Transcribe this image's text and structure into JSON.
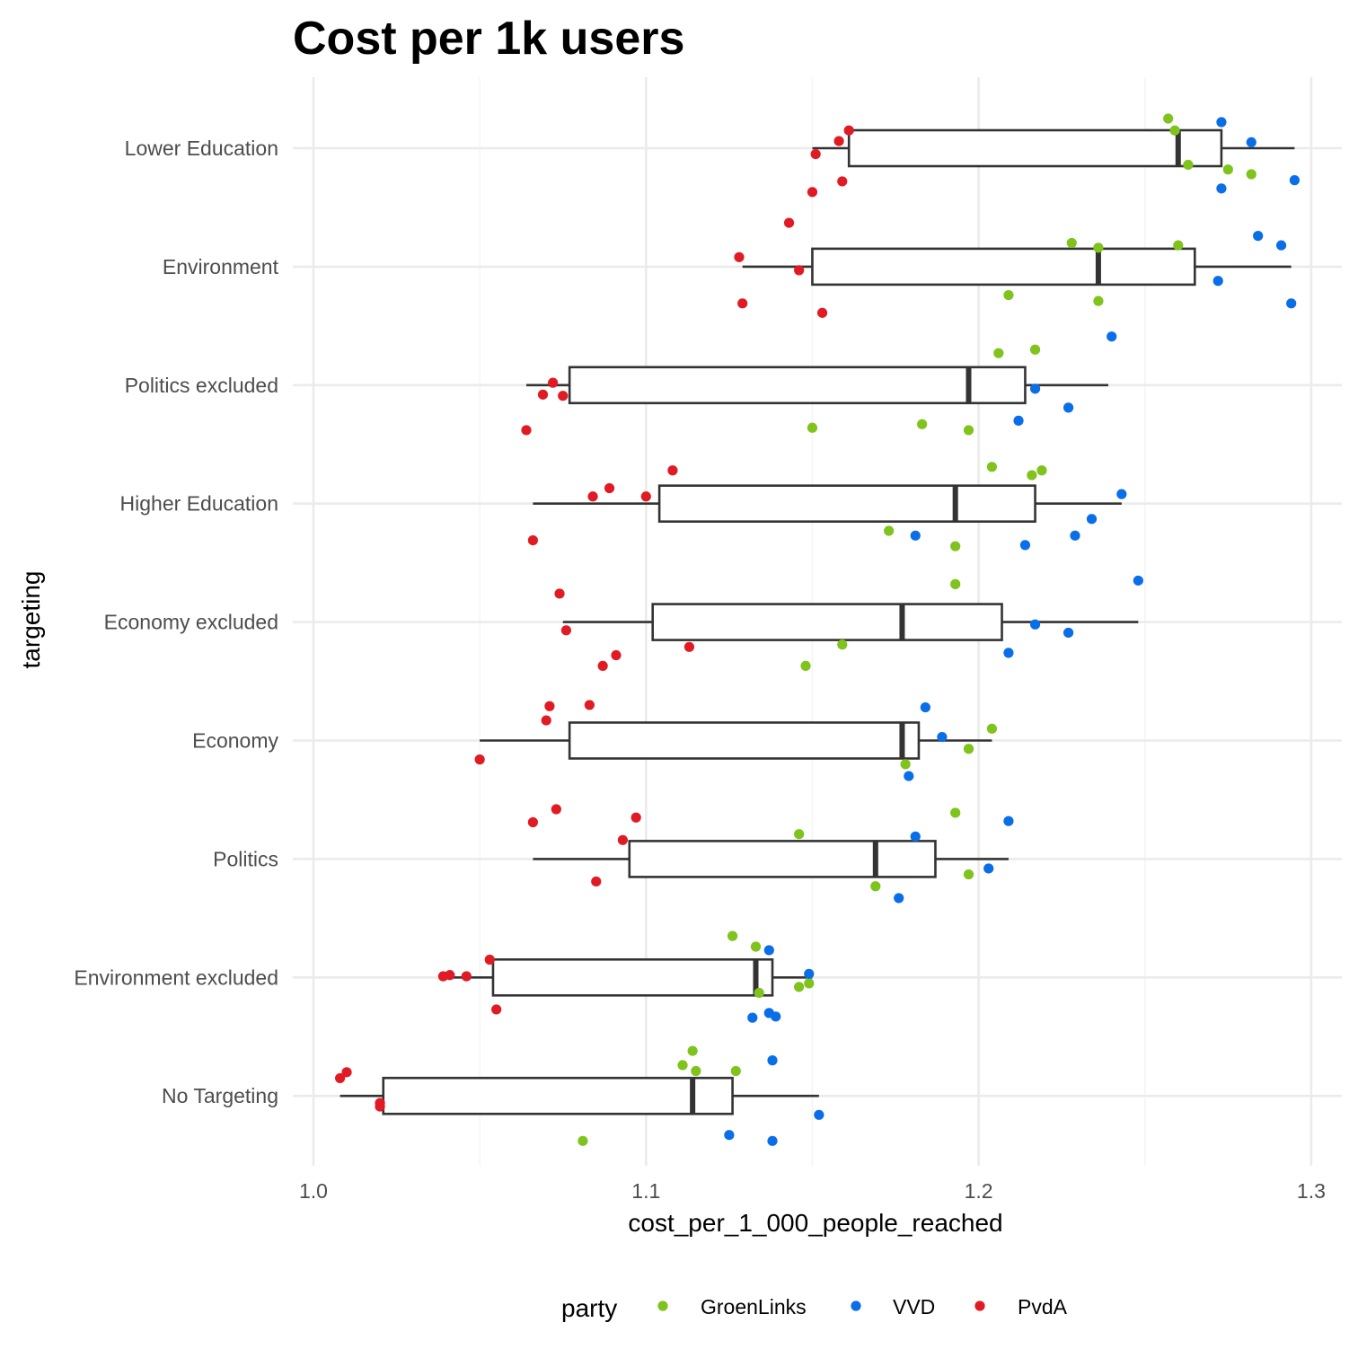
{
  "chart_data": {
    "type": "box",
    "title": "Cost per 1k users",
    "xlabel": "cost_per_1_000_people_reached",
    "ylabel": "targeting",
    "xlim": [
      0.995,
      1.31
    ],
    "x_ticks": [
      1.0,
      1.1,
      1.2,
      1.3
    ],
    "x_tick_labels": [
      "1.0",
      "1.1",
      "1.2",
      "1.3"
    ],
    "grid": true,
    "legend_position": "bottom",
    "legend": {
      "title": "party",
      "entries": [
        {
          "name": "GroenLinks",
          "color": "#7fc31c"
        },
        {
          "name": "VVD",
          "color": "#0a6ee8"
        },
        {
          "name": "PvdA",
          "color": "#e01b24"
        }
      ]
    },
    "categories": [
      "Lower Education",
      "Environment",
      "Politics excluded",
      "Higher Education",
      "Economy excluded",
      "Economy",
      "Politics",
      "Environment excluded",
      "No Targeting"
    ],
    "boxes": [
      {
        "category": "Lower Education",
        "whisker_low": 1.15,
        "q1": 1.161,
        "median": 1.26,
        "q3": 1.273,
        "whisker_high": 1.295
      },
      {
        "category": "Environment",
        "whisker_low": 1.129,
        "q1": 1.15,
        "median": 1.236,
        "q3": 1.265,
        "whisker_high": 1.294
      },
      {
        "category": "Politics excluded",
        "whisker_low": 1.064,
        "q1": 1.077,
        "median": 1.197,
        "q3": 1.214,
        "whisker_high": 1.239
      },
      {
        "category": "Higher Education",
        "whisker_low": 1.066,
        "q1": 1.104,
        "median": 1.193,
        "q3": 1.217,
        "whisker_high": 1.243
      },
      {
        "category": "Economy excluded",
        "whisker_low": 1.075,
        "q1": 1.102,
        "median": 1.177,
        "q3": 1.207,
        "whisker_high": 1.248
      },
      {
        "category": "Economy",
        "whisker_low": 1.05,
        "q1": 1.077,
        "median": 1.177,
        "q3": 1.182,
        "whisker_high": 1.204
      },
      {
        "category": "Politics",
        "whisker_low": 1.066,
        "q1": 1.095,
        "median": 1.169,
        "q3": 1.187,
        "whisker_high": 1.209
      },
      {
        "category": "Environment excluded",
        "whisker_low": 1.04,
        "q1": 1.054,
        "median": 1.133,
        "q3": 1.138,
        "whisker_high": 1.15
      },
      {
        "category": "No Targeting",
        "whisker_low": 1.008,
        "q1": 1.021,
        "median": 1.114,
        "q3": 1.126,
        "whisker_high": 1.152
      }
    ],
    "points": [
      {
        "category": "Lower Education",
        "party": "GroenLinks",
        "x": 1.257,
        "jitter": 0.25
      },
      {
        "category": "Lower Education",
        "party": "GroenLinks",
        "x": 1.259,
        "jitter": 0.15
      },
      {
        "category": "Lower Education",
        "party": "GroenLinks",
        "x": 1.263,
        "jitter": -0.14
      },
      {
        "category": "Lower Education",
        "party": "GroenLinks",
        "x": 1.275,
        "jitter": -0.18
      },
      {
        "category": "Lower Education",
        "party": "GroenLinks",
        "x": 1.282,
        "jitter": -0.22
      },
      {
        "category": "Lower Education",
        "party": "VVD",
        "x": 1.273,
        "jitter": 0.22
      },
      {
        "category": "Lower Education",
        "party": "VVD",
        "x": 1.282,
        "jitter": 0.05
      },
      {
        "category": "Lower Education",
        "party": "VVD",
        "x": 1.273,
        "jitter": -0.34
      },
      {
        "category": "Lower Education",
        "party": "VVD",
        "x": 1.295,
        "jitter": -0.27
      },
      {
        "category": "Lower Education",
        "party": "PvdA",
        "x": 1.161,
        "jitter": 0.15
      },
      {
        "category": "Lower Education",
        "party": "PvdA",
        "x": 1.158,
        "jitter": 0.06
      },
      {
        "category": "Lower Education",
        "party": "PvdA",
        "x": 1.151,
        "jitter": -0.05
      },
      {
        "category": "Lower Education",
        "party": "PvdA",
        "x": 1.159,
        "jitter": -0.28
      },
      {
        "category": "Lower Education",
        "party": "PvdA",
        "x": 1.15,
        "jitter": -0.37
      },
      {
        "category": "Lower Education",
        "party": "PvdA",
        "x": 1.143,
        "jitter": -0.63
      },
      {
        "category": "Environment",
        "party": "GroenLinks",
        "x": 1.228,
        "jitter": 0.2
      },
      {
        "category": "Environment",
        "party": "GroenLinks",
        "x": 1.236,
        "jitter": 0.16
      },
      {
        "category": "Environment",
        "party": "GroenLinks",
        "x": 1.26,
        "jitter": 0.18
      },
      {
        "category": "Environment",
        "party": "GroenLinks",
        "x": 1.209,
        "jitter": -0.24
      },
      {
        "category": "Environment",
        "party": "GroenLinks",
        "x": 1.236,
        "jitter": -0.29
      },
      {
        "category": "Environment",
        "party": "VVD",
        "x": 1.284,
        "jitter": 0.26
      },
      {
        "category": "Environment",
        "party": "VVD",
        "x": 1.291,
        "jitter": 0.18
      },
      {
        "category": "Environment",
        "party": "VVD",
        "x": 1.272,
        "jitter": -0.12
      },
      {
        "category": "Environment",
        "party": "VVD",
        "x": 1.294,
        "jitter": -0.31
      },
      {
        "category": "Environment",
        "party": "VVD",
        "x": 1.24,
        "jitter": -0.59
      },
      {
        "category": "Environment",
        "party": "PvdA",
        "x": 1.128,
        "jitter": 0.08
      },
      {
        "category": "Environment",
        "party": "PvdA",
        "x": 1.146,
        "jitter": -0.03
      },
      {
        "category": "Environment",
        "party": "PvdA",
        "x": 1.129,
        "jitter": -0.31
      },
      {
        "category": "Environment",
        "party": "PvdA",
        "x": 1.153,
        "jitter": -0.39
      },
      {
        "category": "Politics excluded",
        "party": "GroenLinks",
        "x": 1.206,
        "jitter": 0.27
      },
      {
        "category": "Politics excluded",
        "party": "GroenLinks",
        "x": 1.217,
        "jitter": 0.3
      },
      {
        "category": "Politics excluded",
        "party": "GroenLinks",
        "x": 1.15,
        "jitter": -0.36
      },
      {
        "category": "Politics excluded",
        "party": "GroenLinks",
        "x": 1.183,
        "jitter": -0.33
      },
      {
        "category": "Politics excluded",
        "party": "GroenLinks",
        "x": 1.197,
        "jitter": -0.38
      },
      {
        "category": "Politics excluded",
        "party": "VVD",
        "x": 1.217,
        "jitter": -0.03
      },
      {
        "category": "Politics excluded",
        "party": "VVD",
        "x": 1.227,
        "jitter": -0.19
      },
      {
        "category": "Politics excluded",
        "party": "VVD",
        "x": 1.212,
        "jitter": -0.3
      },
      {
        "category": "Politics excluded",
        "party": "PvdA",
        "x": 1.072,
        "jitter": 0.02
      },
      {
        "category": "Politics excluded",
        "party": "PvdA",
        "x": 1.069,
        "jitter": -0.08
      },
      {
        "category": "Politics excluded",
        "party": "PvdA",
        "x": 1.075,
        "jitter": -0.09
      },
      {
        "category": "Politics excluded",
        "party": "PvdA",
        "x": 1.064,
        "jitter": -0.38
      },
      {
        "category": "Higher Education",
        "party": "GroenLinks",
        "x": 1.204,
        "jitter": 0.31
      },
      {
        "category": "Higher Education",
        "party": "GroenLinks",
        "x": 1.219,
        "jitter": 0.28
      },
      {
        "category": "Higher Education",
        "party": "GroenLinks",
        "x": 1.216,
        "jitter": 0.24
      },
      {
        "category": "Higher Education",
        "party": "GroenLinks",
        "x": 1.173,
        "jitter": -0.23
      },
      {
        "category": "Higher Education",
        "party": "GroenLinks",
        "x": 1.193,
        "jitter": -0.36
      },
      {
        "category": "Higher Education",
        "party": "VVD",
        "x": 1.243,
        "jitter": 0.08
      },
      {
        "category": "Higher Education",
        "party": "VVD",
        "x": 1.234,
        "jitter": -0.13
      },
      {
        "category": "Higher Education",
        "party": "VVD",
        "x": 1.181,
        "jitter": -0.27
      },
      {
        "category": "Higher Education",
        "party": "VVD",
        "x": 1.229,
        "jitter": -0.27
      },
      {
        "category": "Higher Education",
        "party": "VVD",
        "x": 1.214,
        "jitter": -0.35
      },
      {
        "category": "Higher Education",
        "party": "PvdA",
        "x": 1.108,
        "jitter": 0.28
      },
      {
        "category": "Higher Education",
        "party": "PvdA",
        "x": 1.089,
        "jitter": 0.13
      },
      {
        "category": "Higher Education",
        "party": "PvdA",
        "x": 1.084,
        "jitter": 0.06
      },
      {
        "category": "Higher Education",
        "party": "PvdA",
        "x": 1.1,
        "jitter": 0.06
      },
      {
        "category": "Higher Education",
        "party": "PvdA",
        "x": 1.066,
        "jitter": -0.31
      },
      {
        "category": "Economy excluded",
        "party": "GroenLinks",
        "x": 1.193,
        "jitter": 0.32
      },
      {
        "category": "Economy excluded",
        "party": "GroenLinks",
        "x": 1.159,
        "jitter": -0.19
      },
      {
        "category": "Economy excluded",
        "party": "GroenLinks",
        "x": 1.148,
        "jitter": -0.37
      },
      {
        "category": "Economy excluded",
        "party": "VVD",
        "x": 1.248,
        "jitter": 0.35
      },
      {
        "category": "Economy excluded",
        "party": "VVD",
        "x": 1.217,
        "jitter": -0.02
      },
      {
        "category": "Economy excluded",
        "party": "VVD",
        "x": 1.227,
        "jitter": -0.09
      },
      {
        "category": "Economy excluded",
        "party": "VVD",
        "x": 1.209,
        "jitter": -0.26
      },
      {
        "category": "Economy excluded",
        "party": "PvdA",
        "x": 1.074,
        "jitter": 0.24
      },
      {
        "category": "Economy excluded",
        "party": "PvdA",
        "x": 1.076,
        "jitter": -0.07
      },
      {
        "category": "Economy excluded",
        "party": "PvdA",
        "x": 1.113,
        "jitter": -0.21
      },
      {
        "category": "Economy excluded",
        "party": "PvdA",
        "x": 1.091,
        "jitter": -0.28
      },
      {
        "category": "Economy excluded",
        "party": "PvdA",
        "x": 1.087,
        "jitter": -0.37
      },
      {
        "category": "Economy",
        "party": "GroenLinks",
        "x": 1.204,
        "jitter": 0.1
      },
      {
        "category": "Economy",
        "party": "GroenLinks",
        "x": 1.197,
        "jitter": -0.07
      },
      {
        "category": "Economy",
        "party": "GroenLinks",
        "x": 1.178,
        "jitter": -0.2
      },
      {
        "category": "Economy",
        "party": "VVD",
        "x": 1.184,
        "jitter": 0.28
      },
      {
        "category": "Economy",
        "party": "VVD",
        "x": 1.189,
        "jitter": 0.03
      },
      {
        "category": "Economy",
        "party": "VVD",
        "x": 1.179,
        "jitter": -0.3
      },
      {
        "category": "Economy",
        "party": "PvdA",
        "x": 1.071,
        "jitter": 0.29
      },
      {
        "category": "Economy",
        "party": "PvdA",
        "x": 1.083,
        "jitter": 0.3
      },
      {
        "category": "Economy",
        "party": "PvdA",
        "x": 1.07,
        "jitter": 0.17
      },
      {
        "category": "Economy",
        "party": "PvdA",
        "x": 1.05,
        "jitter": -0.16
      },
      {
        "category": "Politics",
        "party": "GroenLinks",
        "x": 1.193,
        "jitter": 0.39
      },
      {
        "category": "Politics",
        "party": "GroenLinks",
        "x": 1.146,
        "jitter": 0.21
      },
      {
        "category": "Politics",
        "party": "GroenLinks",
        "x": 1.197,
        "jitter": -0.13
      },
      {
        "category": "Politics",
        "party": "GroenLinks",
        "x": 1.169,
        "jitter": -0.23
      },
      {
        "category": "Politics",
        "party": "VVD",
        "x": 1.209,
        "jitter": 0.32
      },
      {
        "category": "Politics",
        "party": "VVD",
        "x": 1.181,
        "jitter": 0.19
      },
      {
        "category": "Politics",
        "party": "VVD",
        "x": 1.203,
        "jitter": -0.08
      },
      {
        "category": "Politics",
        "party": "VVD",
        "x": 1.176,
        "jitter": -0.33
      },
      {
        "category": "Politics",
        "party": "PvdA",
        "x": 1.073,
        "jitter": 0.42
      },
      {
        "category": "Politics",
        "party": "PvdA",
        "x": 1.066,
        "jitter": 0.31
      },
      {
        "category": "Politics",
        "party": "PvdA",
        "x": 1.097,
        "jitter": 0.35
      },
      {
        "category": "Politics",
        "party": "PvdA",
        "x": 1.093,
        "jitter": 0.16
      },
      {
        "category": "Politics",
        "party": "PvdA",
        "x": 1.085,
        "jitter": -0.19
      },
      {
        "category": "Environment excluded",
        "party": "GroenLinks",
        "x": 1.126,
        "jitter": 0.35
      },
      {
        "category": "Environment excluded",
        "party": "GroenLinks",
        "x": 1.133,
        "jitter": 0.26
      },
      {
        "category": "Environment excluded",
        "party": "GroenLinks",
        "x": 1.134,
        "jitter": -0.13
      },
      {
        "category": "Environment excluded",
        "party": "GroenLinks",
        "x": 1.146,
        "jitter": -0.08
      },
      {
        "category": "Environment excluded",
        "party": "GroenLinks",
        "x": 1.149,
        "jitter": -0.05
      },
      {
        "category": "Environment excluded",
        "party": "VVD",
        "x": 1.137,
        "jitter": 0.23
      },
      {
        "category": "Environment excluded",
        "party": "VVD",
        "x": 1.149,
        "jitter": 0.03
      },
      {
        "category": "Environment excluded",
        "party": "VVD",
        "x": 1.132,
        "jitter": -0.34
      },
      {
        "category": "Environment excluded",
        "party": "VVD",
        "x": 1.137,
        "jitter": -0.3
      },
      {
        "category": "Environment excluded",
        "party": "VVD",
        "x": 1.139,
        "jitter": -0.33
      },
      {
        "category": "Environment excluded",
        "party": "PvdA",
        "x": 1.053,
        "jitter": 0.15
      },
      {
        "category": "Environment excluded",
        "party": "PvdA",
        "x": 1.039,
        "jitter": 0.01
      },
      {
        "category": "Environment excluded",
        "party": "PvdA",
        "x": 1.041,
        "jitter": 0.02
      },
      {
        "category": "Environment excluded",
        "party": "PvdA",
        "x": 1.046,
        "jitter": 0.01
      },
      {
        "category": "Environment excluded",
        "party": "PvdA",
        "x": 1.055,
        "jitter": -0.27
      },
      {
        "category": "No Targeting",
        "party": "GroenLinks",
        "x": 1.114,
        "jitter": 0.38
      },
      {
        "category": "No Targeting",
        "party": "GroenLinks",
        "x": 1.111,
        "jitter": 0.26
      },
      {
        "category": "No Targeting",
        "party": "GroenLinks",
        "x": 1.115,
        "jitter": 0.21
      },
      {
        "category": "No Targeting",
        "party": "GroenLinks",
        "x": 1.127,
        "jitter": 0.21
      },
      {
        "category": "No Targeting",
        "party": "GroenLinks",
        "x": 1.081,
        "jitter": -0.38
      },
      {
        "category": "No Targeting",
        "party": "VVD",
        "x": 1.138,
        "jitter": 0.3
      },
      {
        "category": "No Targeting",
        "party": "VVD",
        "x": 1.152,
        "jitter": -0.16
      },
      {
        "category": "No Targeting",
        "party": "VVD",
        "x": 1.125,
        "jitter": -0.33
      },
      {
        "category": "No Targeting",
        "party": "VVD",
        "x": 1.138,
        "jitter": -0.38
      },
      {
        "category": "No Targeting",
        "party": "PvdA",
        "x": 1.01,
        "jitter": 0.2
      },
      {
        "category": "No Targeting",
        "party": "PvdA",
        "x": 1.008,
        "jitter": 0.15
      },
      {
        "category": "No Targeting",
        "party": "PvdA",
        "x": 1.02,
        "jitter": -0.06
      },
      {
        "category": "No Targeting",
        "party": "PvdA",
        "x": 1.02,
        "jitter": -0.09
      }
    ]
  }
}
